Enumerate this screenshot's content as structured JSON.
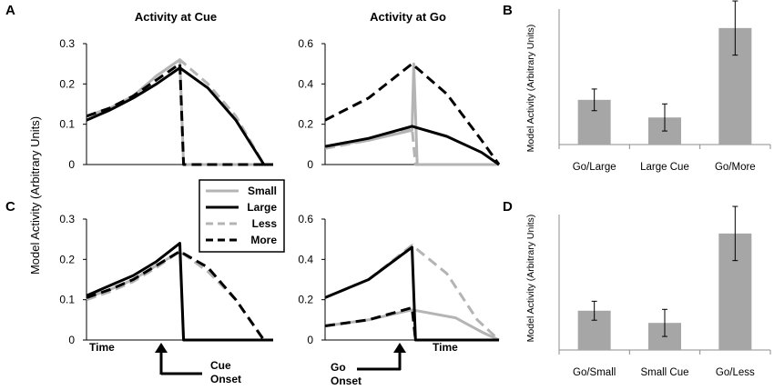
{
  "shared_ylabel": "Model Activity (Arbitrary Units)",
  "legend": {
    "entries": [
      {
        "label": "Small",
        "color": "#b4b4b4",
        "dash": false
      },
      {
        "label": "Large",
        "color": "#000000",
        "dash": false
      },
      {
        "label": "Less",
        "color": "#b4b4b4",
        "dash": true
      },
      {
        "label": "More",
        "color": "#000000",
        "dash": true
      }
    ]
  },
  "annotations": {
    "time": "Time",
    "cue": "Cue",
    "go": "Go",
    "onset": "Onset"
  },
  "chart_data": [
    {
      "id": "A1",
      "panel": "A",
      "type": "line",
      "title": "Activity at Cue",
      "x_domain": [
        0,
        2
      ],
      "ylim": [
        0,
        0.3
      ],
      "yticks": [
        0,
        0.1,
        0.2,
        0.3
      ],
      "series": [
        {
          "name": "Small",
          "points": [
            [
              0,
              0.12
            ],
            [
              0.25,
              0.14
            ],
            [
              0.5,
              0.17
            ],
            [
              0.75,
              0.22
            ],
            [
              1,
              0.26
            ],
            [
              1.04,
              0
            ],
            [
              2,
              0
            ]
          ]
        },
        {
          "name": "Large",
          "points": [
            [
              0,
              0.11
            ],
            [
              0.25,
              0.135
            ],
            [
              0.5,
              0.165
            ],
            [
              0.75,
              0.2
            ],
            [
              1,
              0.24
            ],
            [
              1.3,
              0.19
            ],
            [
              1.6,
              0.11
            ],
            [
              1.9,
              0
            ],
            [
              2,
              0
            ]
          ]
        },
        {
          "name": "Less",
          "points": [
            [
              0,
              0.12
            ],
            [
              0.25,
              0.14
            ],
            [
              0.5,
              0.17
            ],
            [
              0.75,
              0.22
            ],
            [
              1,
              0.26
            ],
            [
              1.3,
              0.2
            ],
            [
              1.6,
              0.12
            ],
            [
              1.9,
              0
            ],
            [
              2,
              0
            ]
          ]
        },
        {
          "name": "More",
          "points": [
            [
              0,
              0.12
            ],
            [
              0.25,
              0.14
            ],
            [
              0.5,
              0.17
            ],
            [
              0.75,
              0.21
            ],
            [
              1,
              0.25
            ],
            [
              1.04,
              0
            ],
            [
              2,
              0
            ]
          ]
        }
      ]
    },
    {
      "id": "A2",
      "panel": "",
      "type": "line",
      "title": "Activity at Go",
      "x_domain": [
        0,
        2
      ],
      "ylim": [
        0,
        0.6
      ],
      "yticks": [
        0,
        0.2,
        0.4,
        0.6
      ],
      "series": [
        {
          "name": "Small",
          "points": [
            [
              0,
              0.09
            ],
            [
              0.5,
              0.12
            ],
            [
              1,
              0.17
            ],
            [
              1.02,
              0.5
            ],
            [
              1.06,
              0
            ],
            [
              2,
              0
            ]
          ]
        },
        {
          "name": "Large",
          "points": [
            [
              0,
              0.09
            ],
            [
              0.5,
              0.13
            ],
            [
              1,
              0.19
            ],
            [
              1.4,
              0.14
            ],
            [
              1.8,
              0.06
            ],
            [
              2,
              0
            ]
          ]
        },
        {
          "name": "Less",
          "points": [
            [
              0,
              0.08
            ],
            [
              0.5,
              0.12
            ],
            [
              1,
              0.18
            ],
            [
              1.04,
              0
            ],
            [
              2,
              0
            ]
          ]
        },
        {
          "name": "More",
          "points": [
            [
              0,
              0.22
            ],
            [
              0.5,
              0.33
            ],
            [
              1,
              0.5
            ],
            [
              1.4,
              0.35
            ],
            [
              1.8,
              0.12
            ],
            [
              2,
              0
            ]
          ]
        }
      ]
    },
    {
      "id": "B",
      "panel": "B",
      "type": "bar",
      "ylabel": "Model Activity (Arbitrary Units)",
      "ylim": [
        0,
        1
      ],
      "categories": [
        "Go/Large",
        "Large Cue",
        "Go/More"
      ],
      "values": [
        0.33,
        0.2,
        0.86
      ],
      "errors": [
        0.08,
        0.1,
        0.2
      ]
    },
    {
      "id": "C1",
      "panel": "C",
      "type": "line",
      "title": "",
      "x_domain": [
        0,
        2
      ],
      "ylim": [
        0,
        0.3
      ],
      "yticks": [
        0,
        0.1,
        0.2,
        0.3
      ],
      "series": [
        {
          "name": "Small",
          "points": [
            [
              0,
              0.105
            ],
            [
              0.25,
              0.125
            ],
            [
              0.5,
              0.15
            ],
            [
              0.75,
              0.185
            ],
            [
              1,
              0.22
            ],
            [
              1.04,
              0
            ],
            [
              2,
              0
            ]
          ]
        },
        {
          "name": "Large",
          "points": [
            [
              0,
              0.11
            ],
            [
              0.25,
              0.135
            ],
            [
              0.5,
              0.16
            ],
            [
              0.75,
              0.195
            ],
            [
              1,
              0.24
            ],
            [
              1.04,
              0
            ],
            [
              2,
              0
            ]
          ]
        },
        {
          "name": "Less",
          "points": [
            [
              0,
              0.1
            ],
            [
              0.25,
              0.12
            ],
            [
              0.5,
              0.145
            ],
            [
              0.75,
              0.18
            ],
            [
              1,
              0.22
            ],
            [
              1.3,
              0.17
            ],
            [
              1.6,
              0.1
            ],
            [
              1.9,
              0
            ],
            [
              2,
              0
            ]
          ]
        },
        {
          "name": "More",
          "points": [
            [
              0,
              0.105
            ],
            [
              0.25,
              0.125
            ],
            [
              0.5,
              0.15
            ],
            [
              0.75,
              0.185
            ],
            [
              1,
              0.22
            ],
            [
              1.3,
              0.18
            ],
            [
              1.6,
              0.1
            ],
            [
              1.9,
              0
            ],
            [
              2,
              0
            ]
          ]
        }
      ]
    },
    {
      "id": "C2",
      "panel": "",
      "type": "line",
      "title": "",
      "x_domain": [
        0,
        2
      ],
      "ylim": [
        0,
        0.6
      ],
      "yticks": [
        0,
        0.2,
        0.4,
        0.6
      ],
      "series": [
        {
          "name": "Small",
          "points": [
            [
              0,
              0.07
            ],
            [
              0.5,
              0.1
            ],
            [
              1,
              0.15
            ],
            [
              1.5,
              0.11
            ],
            [
              1.8,
              0.04
            ],
            [
              2,
              0
            ]
          ]
        },
        {
          "name": "Large",
          "points": [
            [
              0,
              0.21
            ],
            [
              0.5,
              0.3
            ],
            [
              1,
              0.46
            ],
            [
              1.04,
              0
            ],
            [
              2,
              0
            ]
          ]
        },
        {
          "name": "Less",
          "points": [
            [
              0,
              0.21
            ],
            [
              0.5,
              0.3
            ],
            [
              1,
              0.47
            ],
            [
              1.4,
              0.33
            ],
            [
              1.75,
              0.1
            ],
            [
              2,
              0
            ]
          ]
        },
        {
          "name": "More",
          "points": [
            [
              0,
              0.07
            ],
            [
              0.5,
              0.1
            ],
            [
              1,
              0.16
            ],
            [
              1.04,
              0
            ],
            [
              2,
              0
            ]
          ]
        }
      ]
    },
    {
      "id": "D",
      "panel": "D",
      "type": "bar",
      "ylabel": "Model Activity (Arbitrary Units)",
      "ylim": [
        0,
        1
      ],
      "categories": [
        "Go/Small",
        "Small Cue",
        "Go/Less"
      ],
      "values": [
        0.29,
        0.2,
        0.86
      ],
      "errors": [
        0.07,
        0.1,
        0.2
      ]
    }
  ]
}
